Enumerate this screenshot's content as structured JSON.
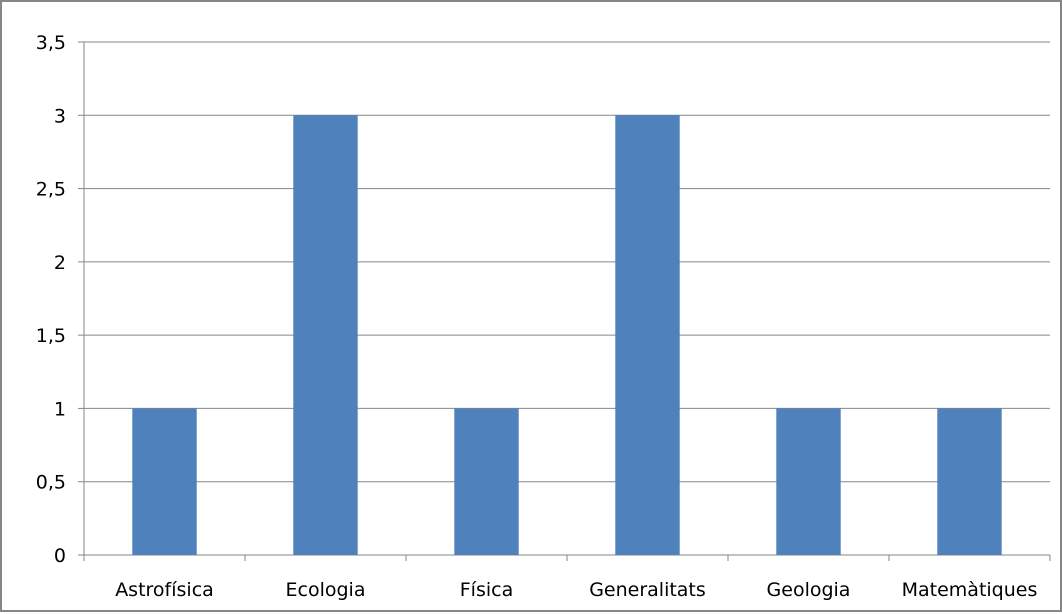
{
  "chart_data": {
    "type": "bar",
    "categories": [
      "Astrofísica",
      "Ecologia",
      "Física",
      "Generalitats",
      "Geologia",
      "Matemàtiques"
    ],
    "values": [
      1,
      3,
      1,
      3,
      1,
      1
    ],
    "ylim": [
      0,
      3.5
    ],
    "yticks": [
      "0",
      "0,5",
      "1",
      "1,5",
      "2",
      "2,5",
      "3",
      "3,5"
    ],
    "ytick_values": [
      0,
      0.5,
      1,
      1.5,
      2,
      2.5,
      3,
      3.5
    ],
    "grid": true,
    "legend": "none",
    "bar_color": "#4f81bd",
    "grid_color": "#868686"
  }
}
